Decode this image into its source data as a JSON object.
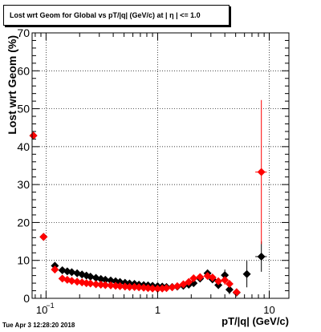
{
  "title": "Lost wrt Geom for Global vs pT/|q| (GeV/c) at |  η | <= 1.0",
  "timestamp": "Tue Apr  3 12:28:20 2018",
  "chart_data": {
    "type": "scatter",
    "title": "Lost wrt Geom for Global vs pT/|q| (GeV/c) at |  η | <= 1.0",
    "xlabel": "pT/|q| (GeV/c)",
    "ylabel": "Lost wrt Geom (%)",
    "xscale": "log",
    "xlim": [
      0.075,
      15
    ],
    "ylim": [
      0,
      70
    ],
    "x_tick_labels": [
      {
        "value": 0.1,
        "label": "10",
        "sup": "−1"
      },
      {
        "value": 1,
        "label": "1",
        "sup": ""
      },
      {
        "value": 10,
        "label": "10",
        "sup": ""
      }
    ],
    "y_ticks": [
      0,
      10,
      20,
      30,
      40,
      50,
      60,
      70
    ],
    "grid": true,
    "series": [
      {
        "marker": "diamond",
        "color": "#000000",
        "points": [
          {
            "x": 0.077,
            "y": 42.9,
            "xerr": 0.004,
            "yerr": 0.6
          },
          {
            "x": 0.095,
            "y": 16.2,
            "xerr": 0.006,
            "yerr": 0.5
          },
          {
            "x": 0.12,
            "y": 8.6,
            "xerr": 0.008,
            "yerr": 0.7
          },
          {
            "x": 0.14,
            "y": 7.4
          },
          {
            "x": 0.155,
            "y": 7.1
          },
          {
            "x": 0.17,
            "y": 6.9
          },
          {
            "x": 0.19,
            "y": 6.6
          },
          {
            "x": 0.21,
            "y": 6.3
          },
          {
            "x": 0.23,
            "y": 6.0
          },
          {
            "x": 0.25,
            "y": 5.7
          },
          {
            "x": 0.28,
            "y": 5.4
          },
          {
            "x": 0.31,
            "y": 5.1
          },
          {
            "x": 0.34,
            "y": 4.9
          },
          {
            "x": 0.38,
            "y": 4.7
          },
          {
            "x": 0.42,
            "y": 4.5
          },
          {
            "x": 0.46,
            "y": 4.3
          },
          {
            "x": 0.51,
            "y": 4.1
          },
          {
            "x": 0.56,
            "y": 3.9
          },
          {
            "x": 0.62,
            "y": 3.8
          },
          {
            "x": 0.68,
            "y": 3.6
          },
          {
            "x": 0.75,
            "y": 3.5
          },
          {
            "x": 0.82,
            "y": 3.4
          },
          {
            "x": 0.9,
            "y": 3.3
          },
          {
            "x": 1.0,
            "y": 3.2
          },
          {
            "x": 1.1,
            "y": 3.1
          },
          {
            "x": 1.2,
            "y": 3.0
          },
          {
            "x": 1.35,
            "y": 3.0
          },
          {
            "x": 1.5,
            "y": 3.1
          },
          {
            "x": 1.7,
            "y": 3.3
          },
          {
            "x": 1.9,
            "y": 3.6
          },
          {
            "x": 2.1,
            "y": 4.0
          },
          {
            "x": 2.4,
            "y": 5.2
          },
          {
            "x": 2.8,
            "y": 6.6
          },
          {
            "x": 3.1,
            "y": 5.0
          },
          {
            "x": 3.5,
            "y": 3.5,
            "yerr": 1.0
          },
          {
            "x": 4.0,
            "y": 6.1,
            "yerr": 1.5
          },
          {
            "x": 4.4,
            "y": 2.3,
            "yerr": 1.2
          },
          {
            "x": 5.1,
            "y": 1.5,
            "yerr": 1.0
          },
          {
            "x": 6.3,
            "y": 6.4,
            "xerr": 0.4,
            "yerr": 3.5
          },
          {
            "x": 8.5,
            "y": 11.0,
            "xerr": 1.0,
            "yerr": 4.0
          }
        ]
      },
      {
        "marker": "diamond",
        "color": "#ff0000",
        "points": [
          {
            "x": 0.077,
            "y": 42.9,
            "xerr": 0.004,
            "yerr": 0.6
          },
          {
            "x": 0.095,
            "y": 16.2,
            "xerr": 0.006,
            "yerr": 0.5
          },
          {
            "x": 0.12,
            "y": 7.6,
            "xerr": 0.008,
            "yerr": 0.6
          },
          {
            "x": 0.14,
            "y": 5.2
          },
          {
            "x": 0.155,
            "y": 4.9
          },
          {
            "x": 0.17,
            "y": 4.6
          },
          {
            "x": 0.19,
            "y": 4.4
          },
          {
            "x": 0.21,
            "y": 4.2
          },
          {
            "x": 0.23,
            "y": 4.0
          },
          {
            "x": 0.25,
            "y": 3.9
          },
          {
            "x": 0.28,
            "y": 3.7
          },
          {
            "x": 0.31,
            "y": 3.6
          },
          {
            "x": 0.34,
            "y": 3.5
          },
          {
            "x": 0.38,
            "y": 3.4
          },
          {
            "x": 0.42,
            "y": 3.3
          },
          {
            "x": 0.46,
            "y": 3.2
          },
          {
            "x": 0.51,
            "y": 3.1
          },
          {
            "x": 0.56,
            "y": 3.0
          },
          {
            "x": 0.62,
            "y": 3.0
          },
          {
            "x": 0.68,
            "y": 2.9
          },
          {
            "x": 0.75,
            "y": 2.8
          },
          {
            "x": 0.82,
            "y": 2.7
          },
          {
            "x": 0.9,
            "y": 2.6
          },
          {
            "x": 1.0,
            "y": 2.5
          },
          {
            "x": 1.1,
            "y": 2.6
          },
          {
            "x": 1.2,
            "y": 2.7
          },
          {
            "x": 1.35,
            "y": 2.9
          },
          {
            "x": 1.5,
            "y": 3.2
          },
          {
            "x": 1.7,
            "y": 3.7
          },
          {
            "x": 1.9,
            "y": 4.3
          },
          {
            "x": 2.1,
            "y": 5.3
          },
          {
            "x": 2.4,
            "y": 5.6
          },
          {
            "x": 2.8,
            "y": 5.9
          },
          {
            "x": 3.1,
            "y": 5.5
          },
          {
            "x": 3.5,
            "y": 4.5,
            "yerr": 1.0
          },
          {
            "x": 4.0,
            "y": 4.8,
            "yerr": 1.2
          },
          {
            "x": 4.4,
            "y": 3.8,
            "yerr": 1.0
          },
          {
            "x": 5.1,
            "y": 1.6,
            "yerr": 1.0
          },
          {
            "x": 8.5,
            "y": 33.3,
            "xerr": 1.0,
            "yerr": 19.0
          }
        ]
      }
    ]
  }
}
